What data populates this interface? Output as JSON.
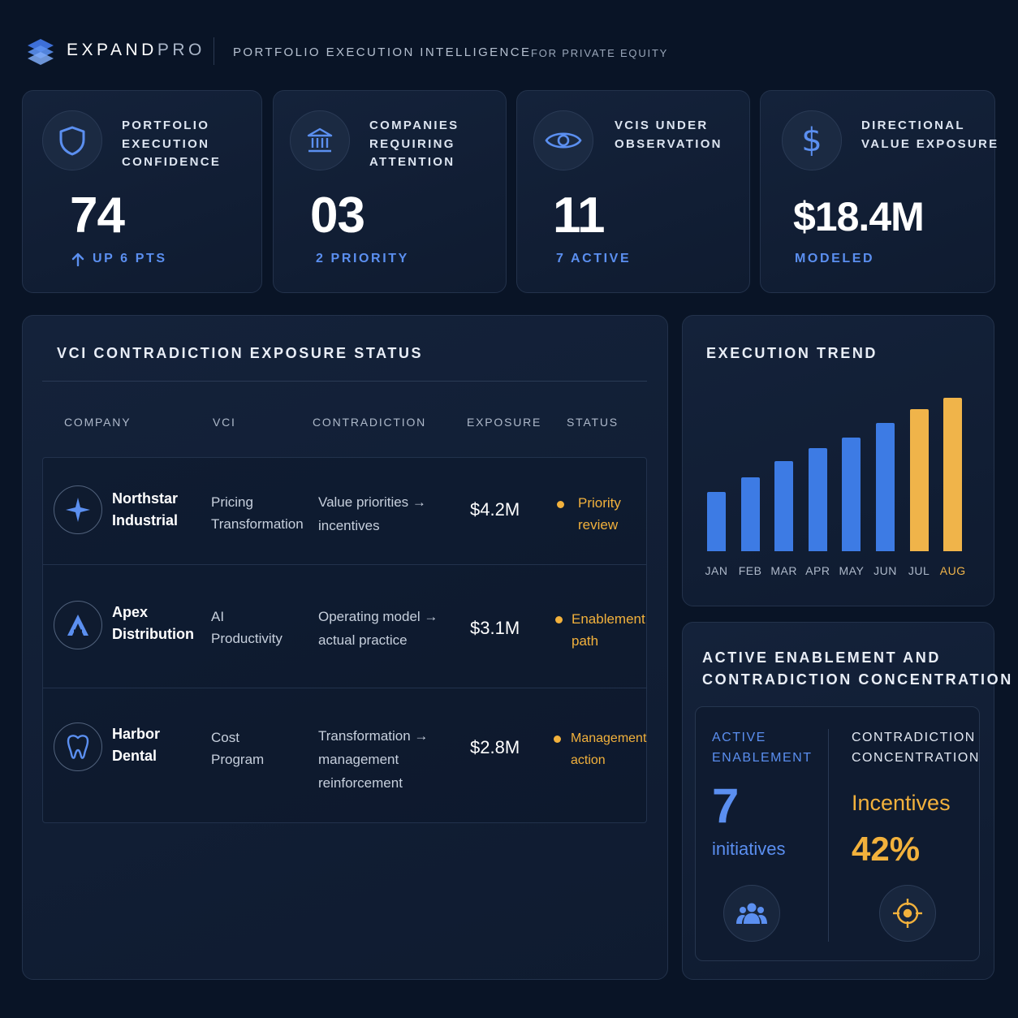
{
  "header": {
    "brand_main": "EXPAND",
    "brand_pro": "PRO",
    "tagline": "PORTFOLIO EXECUTION INTELLIGENCE",
    "tagline_sub": "FOR PRIVATE EQUITY"
  },
  "stats": [
    {
      "label": "PORTFOLIO EXECUTION CONFIDENCE",
      "value": "74",
      "sub": "UP 6 PTS",
      "icon": "shield-icon"
    },
    {
      "label": "COMPANIES REQUIRING ATTENTION",
      "value": "03",
      "sub": "2 PRIORITY",
      "icon": "bank-icon"
    },
    {
      "label": "VCIS UNDER OBSERVATION",
      "value": "11",
      "sub": "7 ACTIVE",
      "icon": "eye-icon"
    },
    {
      "label": "DIRECTIONAL VALUE EXPOSURE",
      "value": "$18.4M",
      "sub": "MODELED",
      "icon": "dollar-icon"
    }
  ],
  "table": {
    "title": "VCI CONTRADICTION EXPOSURE STATUS",
    "columns": [
      "COMPANY",
      "VCI",
      "CONTRADICTION",
      "EXPOSURE",
      "STATUS"
    ],
    "rows": [
      {
        "company_l1": "Northstar",
        "company_l2": "Industrial",
        "vci_l1": "Pricing",
        "vci_l2": "Transformation",
        "contra_l1": "Value priorities →",
        "contra_l2": "incentives",
        "contra_l3": "",
        "exposure": "$4.2M",
        "status_l1": "Priority",
        "status_l2": "review",
        "icon": "compass-star-icon"
      },
      {
        "company_l1": "Apex",
        "company_l2": "Distribution",
        "vci_l1": "AI",
        "vci_l2": "Productivity",
        "contra_l1": "Operating model →",
        "contra_l2": "actual practice",
        "contra_l3": "",
        "exposure": "$3.1M",
        "status_l1": "Enablement",
        "status_l2": "path",
        "icon": "apex-a-icon"
      },
      {
        "company_l1": "Harbor",
        "company_l2": "Dental",
        "vci_l1": "Cost",
        "vci_l2": "Program",
        "contra_l1": "Transformation →",
        "contra_l2": "management",
        "contra_l3": "reinforcement",
        "exposure": "$2.8M",
        "status_l1": "Management",
        "status_l2": "action",
        "icon": "tooth-icon"
      }
    ]
  },
  "trend": {
    "title": "EXECUTION TREND"
  },
  "chart_data": {
    "type": "bar",
    "categories": [
      "JAN",
      "FEB",
      "MAR",
      "APR",
      "MAY",
      "JUN",
      "JUL",
      "AUG"
    ],
    "values": [
      40,
      50,
      61,
      70,
      77,
      87,
      96,
      104
    ],
    "highlight": [
      "JUL",
      "AUG"
    ],
    "ylim": [
      0,
      110
    ],
    "grid": false,
    "colors": {
      "base": "#3d7be4",
      "highlight": "#f0b44a"
    }
  },
  "enablement": {
    "title_l1": "ACTIVE ENABLEMENT AND",
    "title_l2": "CONTRADICTION CONCENTRATION",
    "left_label_l1": "ACTIVE",
    "left_label_l2": "ENABLEMENT",
    "left_value": "7",
    "left_unit": "initiatives",
    "right_label_l1": "CONTRADICTION",
    "right_label_l2": "CONCENTRATION",
    "right_value": "Incentives",
    "right_pct": "42%"
  },
  "colors": {
    "background": "#091426",
    "accent_blue": "#5b8ff0",
    "accent_gold": "#f2b13c"
  }
}
